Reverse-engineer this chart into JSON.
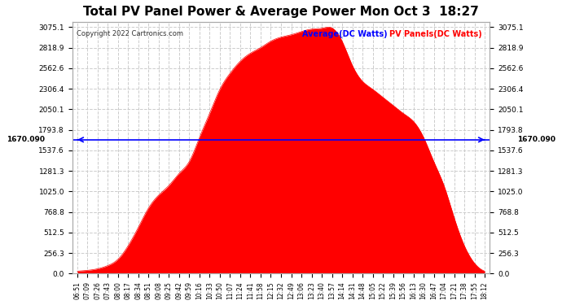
{
  "title": "Total PV Panel Power & Average Power Mon Oct 3  18:27",
  "copyright": "Copyright 2022 Cartronics.com",
  "legend_avg": "Average(DC Watts)",
  "legend_pv": "PV Panels(DC Watts)",
  "average_value": 1670.09,
  "left_label": "1670.090",
  "right_label": "1670.090",
  "y_max": 3075.1,
  "y_min": 0.0,
  "y_ticks": [
    0.0,
    256.3,
    512.5,
    768.8,
    1025.0,
    1281.3,
    1537.6,
    1793.8,
    2050.1,
    2306.4,
    2562.6,
    2818.9,
    3075.1
  ],
  "background_color": "#ffffff",
  "grid_color": "#cccccc",
  "fill_color": "#ff0000",
  "line_color": "#ff0000",
  "avg_line_color": "#0000ff",
  "title_color": "#000000",
  "copyright_color": "#000000",
  "x_labels": [
    "06:51",
    "07:09",
    "07:26",
    "07:43",
    "08:00",
    "08:17",
    "08:34",
    "08:51",
    "09:08",
    "09:25",
    "09:42",
    "09:59",
    "10:16",
    "10:33",
    "10:50",
    "11:07",
    "11:24",
    "11:41",
    "11:58",
    "12:15",
    "12:32",
    "12:49",
    "13:06",
    "13:23",
    "13:40",
    "13:57",
    "14:14",
    "14:31",
    "14:48",
    "15:05",
    "15:22",
    "15:39",
    "15:56",
    "16:13",
    "16:30",
    "16:47",
    "17:04",
    "17:21",
    "17:38",
    "17:55",
    "18:12"
  ],
  "pv_data": [
    30,
    40,
    60,
    100,
    180,
    350,
    580,
    820,
    980,
    1100,
    1250,
    1400,
    1700,
    2000,
    2300,
    2500,
    2650,
    2750,
    2820,
    2900,
    2950,
    2980,
    3020,
    3050,
    3060,
    3065,
    2900,
    2600,
    2400,
    2300,
    2200,
    2100,
    2000,
    1900,
    1700,
    1400,
    1100,
    700,
    350,
    130,
    30
  ]
}
